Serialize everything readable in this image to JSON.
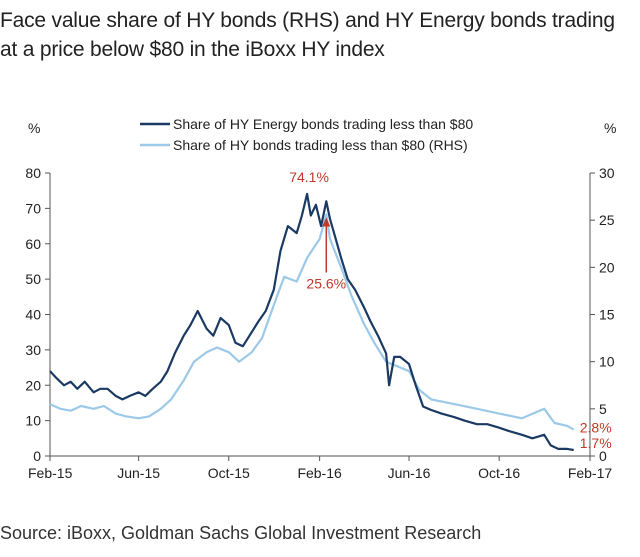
{
  "title": "Face value share of HY bonds (RHS) and HY Energy bonds trading at a price below $80 in the iBoxx HY index",
  "source": "Source: iBoxx, Goldman Sachs Global Investment Research",
  "chart_data": {
    "type": "line",
    "left_unit": "%",
    "right_unit": "%",
    "ylim_left": [
      0,
      80
    ],
    "ylim_right": [
      0,
      30
    ],
    "left_ticks": [
      0,
      10,
      20,
      30,
      40,
      50,
      60,
      70,
      80
    ],
    "right_ticks": [
      0,
      5,
      10,
      15,
      20,
      25,
      30
    ],
    "grid": false,
    "legend_position": "top-center",
    "x_ticks": [
      {
        "date": "2015-02-01",
        "label": "Feb-15"
      },
      {
        "date": "2015-06-01",
        "label": "Jun-15"
      },
      {
        "date": "2015-10-01",
        "label": "Oct-15"
      },
      {
        "date": "2016-02-01",
        "label": "Feb-16"
      },
      {
        "date": "2016-06-01",
        "label": "Jun-16"
      },
      {
        "date": "2016-10-01",
        "label": "Oct-16"
      },
      {
        "date": "2017-02-01",
        "label": "Feb-17"
      }
    ],
    "x_range": [
      "2015-02-01",
      "2017-02-01"
    ],
    "series": [
      {
        "name": "Share of HY Energy bonds trading less than $80",
        "axis": "left",
        "color": "#1b3a63",
        "points": [
          [
            "2015-02-01",
            24
          ],
          [
            "2015-02-10",
            22
          ],
          [
            "2015-02-20",
            20
          ],
          [
            "2015-03-01",
            21
          ],
          [
            "2015-03-10",
            19
          ],
          [
            "2015-03-20",
            21
          ],
          [
            "2015-04-01",
            18
          ],
          [
            "2015-04-10",
            19
          ],
          [
            "2015-04-20",
            19
          ],
          [
            "2015-05-01",
            17
          ],
          [
            "2015-05-10",
            16
          ],
          [
            "2015-05-20",
            17
          ],
          [
            "2015-06-01",
            18
          ],
          [
            "2015-06-10",
            17
          ],
          [
            "2015-06-20",
            19
          ],
          [
            "2015-07-01",
            21
          ],
          [
            "2015-07-10",
            24
          ],
          [
            "2015-07-20",
            29
          ],
          [
            "2015-08-01",
            34
          ],
          [
            "2015-08-10",
            37
          ],
          [
            "2015-08-20",
            41
          ],
          [
            "2015-09-01",
            36
          ],
          [
            "2015-09-10",
            34
          ],
          [
            "2015-09-20",
            39
          ],
          [
            "2015-10-01",
            37
          ],
          [
            "2015-10-10",
            32
          ],
          [
            "2015-10-20",
            31
          ],
          [
            "2015-11-01",
            35
          ],
          [
            "2015-11-10",
            38
          ],
          [
            "2015-11-20",
            41
          ],
          [
            "2015-12-01",
            47
          ],
          [
            "2015-12-10",
            58
          ],
          [
            "2015-12-20",
            65
          ],
          [
            "2016-01-01",
            63
          ],
          [
            "2016-01-08",
            68
          ],
          [
            "2016-01-15",
            74.1
          ],
          [
            "2016-01-20",
            68
          ],
          [
            "2016-01-27",
            71
          ],
          [
            "2016-02-03",
            65
          ],
          [
            "2016-02-10",
            72
          ],
          [
            "2016-02-15",
            67
          ],
          [
            "2016-02-22",
            62
          ],
          [
            "2016-03-01",
            56
          ],
          [
            "2016-03-10",
            50
          ],
          [
            "2016-03-20",
            47
          ],
          [
            "2016-04-01",
            42
          ],
          [
            "2016-04-10",
            38
          ],
          [
            "2016-04-20",
            34
          ],
          [
            "2016-05-01",
            29
          ],
          [
            "2016-05-05",
            20
          ],
          [
            "2016-05-12",
            28
          ],
          [
            "2016-05-20",
            28
          ],
          [
            "2016-06-01",
            26
          ],
          [
            "2016-06-10",
            20
          ],
          [
            "2016-06-20",
            14
          ],
          [
            "2016-07-01",
            13
          ],
          [
            "2016-07-15",
            12
          ],
          [
            "2016-08-01",
            11
          ],
          [
            "2016-08-15",
            10
          ],
          [
            "2016-09-01",
            9
          ],
          [
            "2016-09-15",
            9
          ],
          [
            "2016-10-01",
            8
          ],
          [
            "2016-10-15",
            7
          ],
          [
            "2016-11-01",
            6
          ],
          [
            "2016-11-15",
            5
          ],
          [
            "2016-12-01",
            6
          ],
          [
            "2016-12-10",
            3
          ],
          [
            "2016-12-20",
            2
          ],
          [
            "2017-01-01",
            2
          ],
          [
            "2017-01-10",
            1.7
          ]
        ]
      },
      {
        "name": "Share of HY bonds trading less than $80 (RHS)",
        "axis": "right",
        "color": "#9cc9e8",
        "points": [
          [
            "2015-02-01",
            5.5
          ],
          [
            "2015-02-15",
            5
          ],
          [
            "2015-03-01",
            4.8
          ],
          [
            "2015-03-15",
            5.3
          ],
          [
            "2015-04-01",
            5
          ],
          [
            "2015-04-15",
            5.3
          ],
          [
            "2015-05-01",
            4.5
          ],
          [
            "2015-05-15",
            4.2
          ],
          [
            "2015-06-01",
            4
          ],
          [
            "2015-06-15",
            4.2
          ],
          [
            "2015-07-01",
            5
          ],
          [
            "2015-07-15",
            6
          ],
          [
            "2015-08-01",
            8
          ],
          [
            "2015-08-15",
            10
          ],
          [
            "2015-09-01",
            11
          ],
          [
            "2015-09-15",
            11.5
          ],
          [
            "2015-10-01",
            11
          ],
          [
            "2015-10-15",
            10
          ],
          [
            "2015-11-01",
            11
          ],
          [
            "2015-11-15",
            12.5
          ],
          [
            "2015-12-01",
            16
          ],
          [
            "2015-12-15",
            19
          ],
          [
            "2016-01-01",
            18.5
          ],
          [
            "2016-01-15",
            21
          ],
          [
            "2016-02-01",
            23
          ],
          [
            "2016-02-10",
            25.6
          ],
          [
            "2016-02-15",
            23
          ],
          [
            "2016-03-01",
            20
          ],
          [
            "2016-03-15",
            17
          ],
          [
            "2016-04-01",
            14
          ],
          [
            "2016-04-15",
            12
          ],
          [
            "2016-05-01",
            10
          ],
          [
            "2016-06-01",
            9
          ],
          [
            "2016-06-15",
            7
          ],
          [
            "2016-07-01",
            6
          ],
          [
            "2016-08-01",
            5.5
          ],
          [
            "2016-09-01",
            5
          ],
          [
            "2016-10-01",
            4.5
          ],
          [
            "2016-11-01",
            4
          ],
          [
            "2016-12-01",
            5
          ],
          [
            "2016-12-15",
            3.5
          ],
          [
            "2017-01-01",
            3.2
          ],
          [
            "2017-01-10",
            2.8
          ]
        ]
      }
    ],
    "annotations": [
      {
        "text": "74.1%",
        "series": 0,
        "date": "2016-01-15",
        "value": 74.1,
        "color": "#c0392b"
      },
      {
        "text": "25.6%",
        "series": 1,
        "date": "2016-02-10",
        "value": 25.6,
        "color": "#c0392b"
      },
      {
        "text": "2.8%",
        "series": 1,
        "date": "2017-01-10",
        "value": 2.8,
        "color": "#c0392b"
      },
      {
        "text": "1.7%",
        "series": 0,
        "date": "2017-01-10",
        "value": 1.7,
        "color": "#c0392b"
      }
    ]
  }
}
